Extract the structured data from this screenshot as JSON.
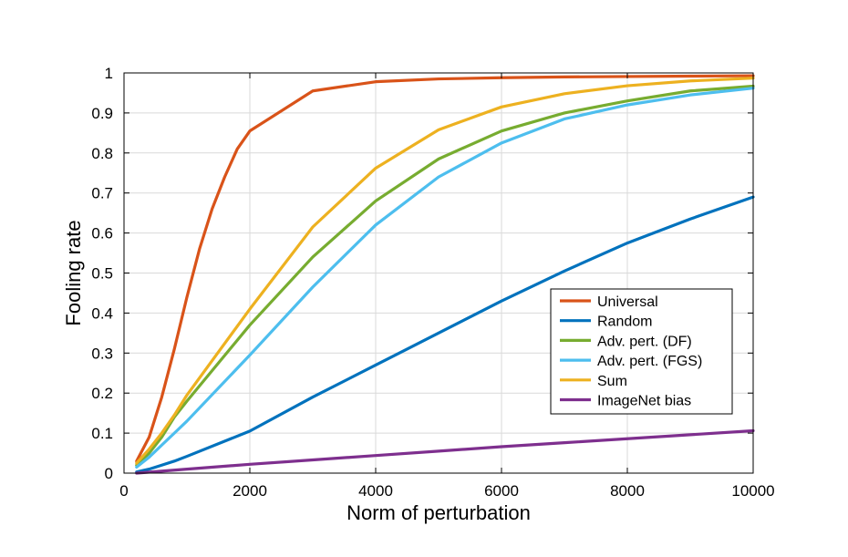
{
  "chart_data": {
    "type": "line",
    "title": "",
    "xlabel": "Norm of perturbation",
    "ylabel": "Fooling rate",
    "xlim": [
      0,
      10000
    ],
    "ylim": [
      0,
      1
    ],
    "grid": true,
    "legend_position": "lower-right",
    "x_ticks": [
      "0",
      "2000",
      "4000",
      "6000",
      "8000",
      "10000"
    ],
    "y_ticks": [
      "0",
      "0.1",
      "0.2",
      "0.3",
      "0.4",
      "0.5",
      "0.6",
      "0.7",
      "0.8",
      "0.9",
      "1"
    ],
    "series": [
      {
        "name": "Universal",
        "color": "#d95319",
        "x": [
          200,
          400,
          600,
          800,
          1000,
          1200,
          1400,
          1600,
          1800,
          2000,
          3000,
          4000,
          5000,
          6000,
          7000,
          8000,
          9000,
          10000
        ],
        "y": [
          0.03,
          0.09,
          0.19,
          0.31,
          0.44,
          0.56,
          0.66,
          0.74,
          0.81,
          0.855,
          0.955,
          0.978,
          0.985,
          0.988,
          0.99,
          0.991,
          0.992,
          0.993
        ]
      },
      {
        "name": "Random",
        "color": "#0072bd",
        "x": [
          200,
          400,
          600,
          800,
          1000,
          2000,
          3000,
          4000,
          5000,
          6000,
          7000,
          8000,
          9000,
          10000
        ],
        "y": [
          0.003,
          0.01,
          0.02,
          0.03,
          0.042,
          0.105,
          0.19,
          0.27,
          0.35,
          0.43,
          0.505,
          0.575,
          0.635,
          0.69
        ]
      },
      {
        "name": "Adv. pert. (DF)",
        "color": "#77ac30",
        "x": [
          200,
          400,
          600,
          800,
          1000,
          2000,
          3000,
          4000,
          5000,
          6000,
          7000,
          8000,
          9000,
          10000
        ],
        "y": [
          0.02,
          0.05,
          0.09,
          0.14,
          0.18,
          0.37,
          0.54,
          0.68,
          0.785,
          0.855,
          0.9,
          0.93,
          0.955,
          0.967
        ]
      },
      {
        "name": "Adv. pert. (FGS)",
        "color": "#4dbeee",
        "x": [
          200,
          400,
          600,
          800,
          1000,
          2000,
          3000,
          4000,
          5000,
          6000,
          7000,
          8000,
          9000,
          10000
        ],
        "y": [
          0.015,
          0.04,
          0.07,
          0.1,
          0.13,
          0.295,
          0.465,
          0.62,
          0.74,
          0.825,
          0.885,
          0.92,
          0.945,
          0.962
        ]
      },
      {
        "name": "Sum",
        "color": "#edb120",
        "x": [
          200,
          400,
          600,
          800,
          1000,
          2000,
          3000,
          4000,
          5000,
          6000,
          7000,
          8000,
          9000,
          10000
        ],
        "y": [
          0.025,
          0.06,
          0.1,
          0.145,
          0.195,
          0.41,
          0.615,
          0.762,
          0.858,
          0.915,
          0.948,
          0.968,
          0.98,
          0.987
        ]
      },
      {
        "name": "ImageNet bias",
        "color": "#7e2f8e",
        "x": [
          200,
          1000,
          2000,
          3000,
          4000,
          5000,
          6000,
          7000,
          8000,
          9000,
          10000
        ],
        "y": [
          0.0,
          0.01,
          0.022,
          0.033,
          0.044,
          0.055,
          0.066,
          0.076,
          0.086,
          0.096,
          0.106
        ]
      }
    ]
  }
}
